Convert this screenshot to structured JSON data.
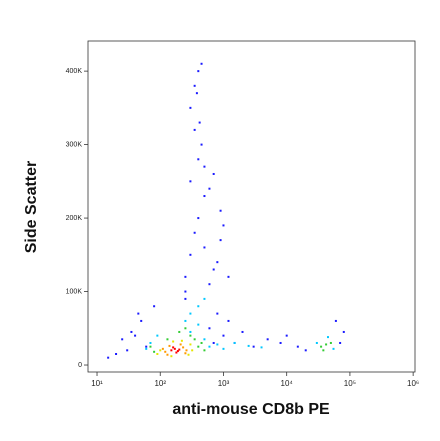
{
  "chart_data": {
    "type": "scatter",
    "xlabel": "anti-mouse CD8b PE",
    "ylabel": "Side Scatter",
    "xscale": "log",
    "xlim": [
      7.2,
      1070000
    ],
    "ylim": [
      -9500,
      441000
    ],
    "xticks": [
      {
        "value": 10,
        "label": "10¹"
      },
      {
        "value": 100,
        "label": "10²"
      },
      {
        "value": 1000,
        "label": "10³"
      },
      {
        "value": 10000,
        "label": "10⁴"
      },
      {
        "value": 100000,
        "label": "10⁵"
      },
      {
        "value": 1000000,
        "label": "10⁶"
      }
    ],
    "yticks": [
      0,
      {
        "value": 100000,
        "label": "100K"
      },
      {
        "value": 200000,
        "label": "200K"
      },
      {
        "value": 300000,
        "label": "300K"
      },
      {
        "value": 400000,
        "label": "400K"
      }
    ],
    "series": [
      {
        "color": "#1a1aff",
        "x": [
          20,
          25,
          30,
          40,
          50,
          60,
          15,
          35,
          45,
          80,
          600,
          700,
          800,
          1000,
          1200,
          1500,
          2000,
          3000,
          5000,
          8000,
          10000,
          15000,
          20000,
          70000,
          80000,
          60000,
          250,
          300,
          350,
          400,
          500,
          300,
          400,
          450,
          350,
          250,
          600,
          700,
          500,
          800,
          900,
          1000,
          300,
          350,
          400,
          450,
          500,
          600,
          250,
          900,
          1200,
          700,
          420,
          380
        ],
        "y": [
          15000,
          35000,
          20000,
          40000,
          60000,
          25000,
          10000,
          45000,
          70000,
          80000,
          50000,
          30000,
          70000,
          40000,
          60000,
          30000,
          45000,
          25000,
          35000,
          30000,
          40000,
          25000,
          20000,
          30000,
          45000,
          60000,
          120000,
          150000,
          180000,
          200000,
          230000,
          250000,
          280000,
          300000,
          320000,
          100000,
          110000,
          130000,
          160000,
          140000,
          170000,
          190000,
          350000,
          380000,
          400000,
          410000,
          270000,
          240000,
          90000,
          210000,
          120000,
          260000,
          330000,
          370000
        ]
      },
      {
        "color": "#00c8ff",
        "x": [
          60,
          70,
          90,
          300,
          400,
          500,
          600,
          800,
          1000,
          1500,
          2500,
          4000,
          30000,
          55000,
          45000,
          300,
          400,
          250,
          500
        ],
        "y": [
          22000,
          30000,
          40000,
          45000,
          55000,
          35000,
          25000,
          28000,
          22000,
          30000,
          26000,
          24000,
          30000,
          22000,
          38000,
          70000,
          80000,
          60000,
          90000
        ]
      },
      {
        "color": "#33cc33",
        "x": [
          70,
          80,
          350,
          400,
          200,
          250,
          300,
          450,
          500,
          130,
          35000,
          42000,
          38000,
          50000
        ],
        "y": [
          25000,
          18000,
          35000,
          25000,
          45000,
          50000,
          40000,
          30000,
          20000,
          35000,
          25000,
          28000,
          20000,
          30000
        ]
      },
      {
        "color": "#e6e600",
        "x": [
          100,
          90,
          300,
          280,
          160,
          220,
          320,
          150
        ],
        "y": [
          20000,
          15000,
          28000,
          14000,
          32000,
          33000,
          20000,
          12000
        ]
      },
      {
        "color": "#ff9900",
        "x": [
          120,
          140,
          230,
          250,
          130,
          210,
          260,
          110
        ],
        "y": [
          18000,
          26000,
          24000,
          16000,
          14000,
          28000,
          20000,
          22000
        ]
      },
      {
        "color": "#ff0000",
        "x": [
          150,
          170,
          190,
          160,
          200,
          180
        ],
        "y": [
          20000,
          22000,
          19000,
          24000,
          21000,
          17000
        ]
      }
    ]
  }
}
